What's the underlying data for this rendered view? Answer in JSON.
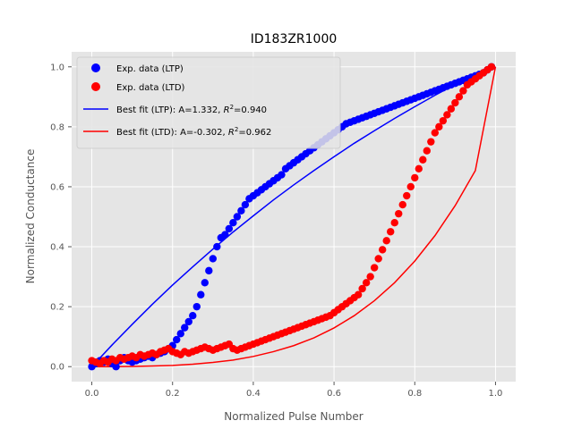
{
  "chart_data": {
    "type": "scatter",
    "title": "ID183ZR1000",
    "xlabel": "Normalized Pulse Number",
    "ylabel": "Normalized Conductance",
    "xlim": [
      -0.05,
      1.05
    ],
    "ylim": [
      -0.05,
      1.05
    ],
    "xticks": [
      0.0,
      0.2,
      0.4,
      0.6,
      0.8,
      1.0
    ],
    "yticks": [
      0.0,
      0.2,
      0.4,
      0.6,
      0.8,
      1.0
    ],
    "xtick_labels": [
      "0.0",
      "0.2",
      "0.4",
      "0.6",
      "0.8",
      "1.0"
    ],
    "ytick_labels": [
      "0.0",
      "0.2",
      "0.4",
      "0.6",
      "0.8",
      "1.0"
    ],
    "grid": true,
    "legend_position": "top-left",
    "series": [
      {
        "name": "Exp. data (LTP)",
        "kind": "points",
        "color": "#0000ff",
        "x": [
          0.0,
          0.01,
          0.02,
          0.03,
          0.04,
          0.05,
          0.06,
          0.07,
          0.08,
          0.09,
          0.1,
          0.11,
          0.12,
          0.13,
          0.14,
          0.15,
          0.16,
          0.17,
          0.18,
          0.19,
          0.2,
          0.21,
          0.22,
          0.23,
          0.24,
          0.25,
          0.26,
          0.27,
          0.28,
          0.29,
          0.3,
          0.31,
          0.32,
          0.33,
          0.34,
          0.35,
          0.36,
          0.37,
          0.38,
          0.39,
          0.4,
          0.41,
          0.42,
          0.43,
          0.44,
          0.45,
          0.46,
          0.47,
          0.48,
          0.49,
          0.5,
          0.51,
          0.52,
          0.53,
          0.54,
          0.55,
          0.56,
          0.57,
          0.58,
          0.59,
          0.6,
          0.61,
          0.62,
          0.63,
          0.64,
          0.65,
          0.66,
          0.67,
          0.68,
          0.69,
          0.7,
          0.71,
          0.72,
          0.73,
          0.74,
          0.75,
          0.76,
          0.77,
          0.78,
          0.79,
          0.8,
          0.81,
          0.82,
          0.83,
          0.84,
          0.85,
          0.86,
          0.87,
          0.88,
          0.89,
          0.9,
          0.91,
          0.92,
          0.93,
          0.94,
          0.95,
          0.96,
          0.97,
          0.98,
          0.99
        ],
        "y": [
          0.0,
          0.01,
          0.02,
          0.015,
          0.025,
          0.01,
          0.0,
          0.02,
          0.03,
          0.02,
          0.015,
          0.02,
          0.025,
          0.03,
          0.035,
          0.03,
          0.04,
          0.045,
          0.05,
          0.06,
          0.07,
          0.09,
          0.11,
          0.13,
          0.15,
          0.17,
          0.2,
          0.24,
          0.28,
          0.32,
          0.36,
          0.4,
          0.43,
          0.44,
          0.46,
          0.48,
          0.5,
          0.52,
          0.54,
          0.56,
          0.57,
          0.58,
          0.59,
          0.6,
          0.61,
          0.62,
          0.63,
          0.64,
          0.66,
          0.67,
          0.68,
          0.69,
          0.7,
          0.71,
          0.72,
          0.73,
          0.74,
          0.75,
          0.76,
          0.77,
          0.78,
          0.79,
          0.8,
          0.81,
          0.815,
          0.82,
          0.825,
          0.83,
          0.835,
          0.84,
          0.845,
          0.85,
          0.855,
          0.86,
          0.865,
          0.87,
          0.875,
          0.88,
          0.885,
          0.89,
          0.895,
          0.9,
          0.905,
          0.91,
          0.915,
          0.92,
          0.925,
          0.93,
          0.935,
          0.94,
          0.945,
          0.95,
          0.955,
          0.96,
          0.965,
          0.97,
          0.975,
          0.98,
          0.99,
          1.0
        ]
      },
      {
        "name": "Exp. data (LTD)",
        "kind": "points",
        "color": "#ff0000",
        "x": [
          0.0,
          0.01,
          0.02,
          0.03,
          0.04,
          0.05,
          0.06,
          0.07,
          0.08,
          0.09,
          0.1,
          0.11,
          0.12,
          0.13,
          0.14,
          0.15,
          0.16,
          0.17,
          0.18,
          0.19,
          0.2,
          0.21,
          0.22,
          0.23,
          0.24,
          0.25,
          0.26,
          0.27,
          0.28,
          0.29,
          0.3,
          0.31,
          0.32,
          0.33,
          0.34,
          0.35,
          0.36,
          0.37,
          0.38,
          0.39,
          0.4,
          0.41,
          0.42,
          0.43,
          0.44,
          0.45,
          0.46,
          0.47,
          0.48,
          0.49,
          0.5,
          0.51,
          0.52,
          0.53,
          0.54,
          0.55,
          0.56,
          0.57,
          0.58,
          0.59,
          0.6,
          0.61,
          0.62,
          0.63,
          0.64,
          0.65,
          0.66,
          0.67,
          0.68,
          0.69,
          0.7,
          0.71,
          0.72,
          0.73,
          0.74,
          0.75,
          0.76,
          0.77,
          0.78,
          0.79,
          0.8,
          0.81,
          0.82,
          0.83,
          0.84,
          0.85,
          0.86,
          0.87,
          0.88,
          0.89,
          0.9,
          0.91,
          0.92,
          0.93,
          0.94,
          0.95,
          0.96,
          0.97,
          0.98,
          0.99
        ],
        "y": [
          0.02,
          0.015,
          0.01,
          0.02,
          0.015,
          0.025,
          0.02,
          0.03,
          0.025,
          0.03,
          0.035,
          0.03,
          0.04,
          0.035,
          0.04,
          0.045,
          0.04,
          0.05,
          0.055,
          0.06,
          0.05,
          0.045,
          0.04,
          0.05,
          0.045,
          0.05,
          0.055,
          0.06,
          0.065,
          0.06,
          0.055,
          0.06,
          0.065,
          0.07,
          0.075,
          0.06,
          0.055,
          0.06,
          0.065,
          0.07,
          0.075,
          0.08,
          0.085,
          0.09,
          0.095,
          0.1,
          0.105,
          0.11,
          0.115,
          0.12,
          0.125,
          0.13,
          0.135,
          0.14,
          0.145,
          0.15,
          0.155,
          0.16,
          0.165,
          0.17,
          0.18,
          0.19,
          0.2,
          0.21,
          0.22,
          0.23,
          0.24,
          0.26,
          0.28,
          0.3,
          0.33,
          0.36,
          0.39,
          0.42,
          0.45,
          0.48,
          0.51,
          0.54,
          0.57,
          0.6,
          0.63,
          0.66,
          0.69,
          0.72,
          0.75,
          0.78,
          0.8,
          0.82,
          0.84,
          0.86,
          0.88,
          0.9,
          0.92,
          0.94,
          0.95,
          0.96,
          0.97,
          0.98,
          0.99,
          1.0
        ]
      },
      {
        "name": "Best fit (LTP): A=1.332, R²=0.940",
        "legend_prefix": "Best fit (LTP): A=1.332, ",
        "legend_r2": "=0.940",
        "kind": "line",
        "color": "#0000ff",
        "x": [
          0.0,
          0.05,
          0.1,
          0.15,
          0.2,
          0.25,
          0.3,
          0.35,
          0.4,
          0.45,
          0.5,
          0.55,
          0.6,
          0.65,
          0.7,
          0.75,
          0.8,
          0.85,
          0.9,
          0.95,
          1.0
        ],
        "y": [
          0.0,
          0.072,
          0.141,
          0.208,
          0.272,
          0.333,
          0.392,
          0.449,
          0.503,
          0.556,
          0.606,
          0.654,
          0.7,
          0.745,
          0.787,
          0.828,
          0.867,
          0.905,
          0.941,
          0.975,
          1.0
        ]
      },
      {
        "name": "Best fit (LTD): A=-0.302, R²=0.962",
        "legend_prefix": "Best fit (LTD): A=-0.302, ",
        "legend_r2": "=0.962",
        "kind": "line",
        "color": "#ff0000",
        "x": [
          0.0,
          0.05,
          0.1,
          0.15,
          0.2,
          0.25,
          0.3,
          0.35,
          0.4,
          0.45,
          0.5,
          0.55,
          0.6,
          0.65,
          0.7,
          0.75,
          0.8,
          0.85,
          0.9,
          0.95,
          1.0
        ],
        "y": [
          0.0,
          0.0001,
          0.0005,
          0.002,
          0.004,
          0.008,
          0.014,
          0.022,
          0.034,
          0.05,
          0.07,
          0.096,
          0.129,
          0.17,
          0.22,
          0.28,
          0.352,
          0.437,
          0.537,
          0.654,
          1.0
        ]
      }
    ]
  }
}
